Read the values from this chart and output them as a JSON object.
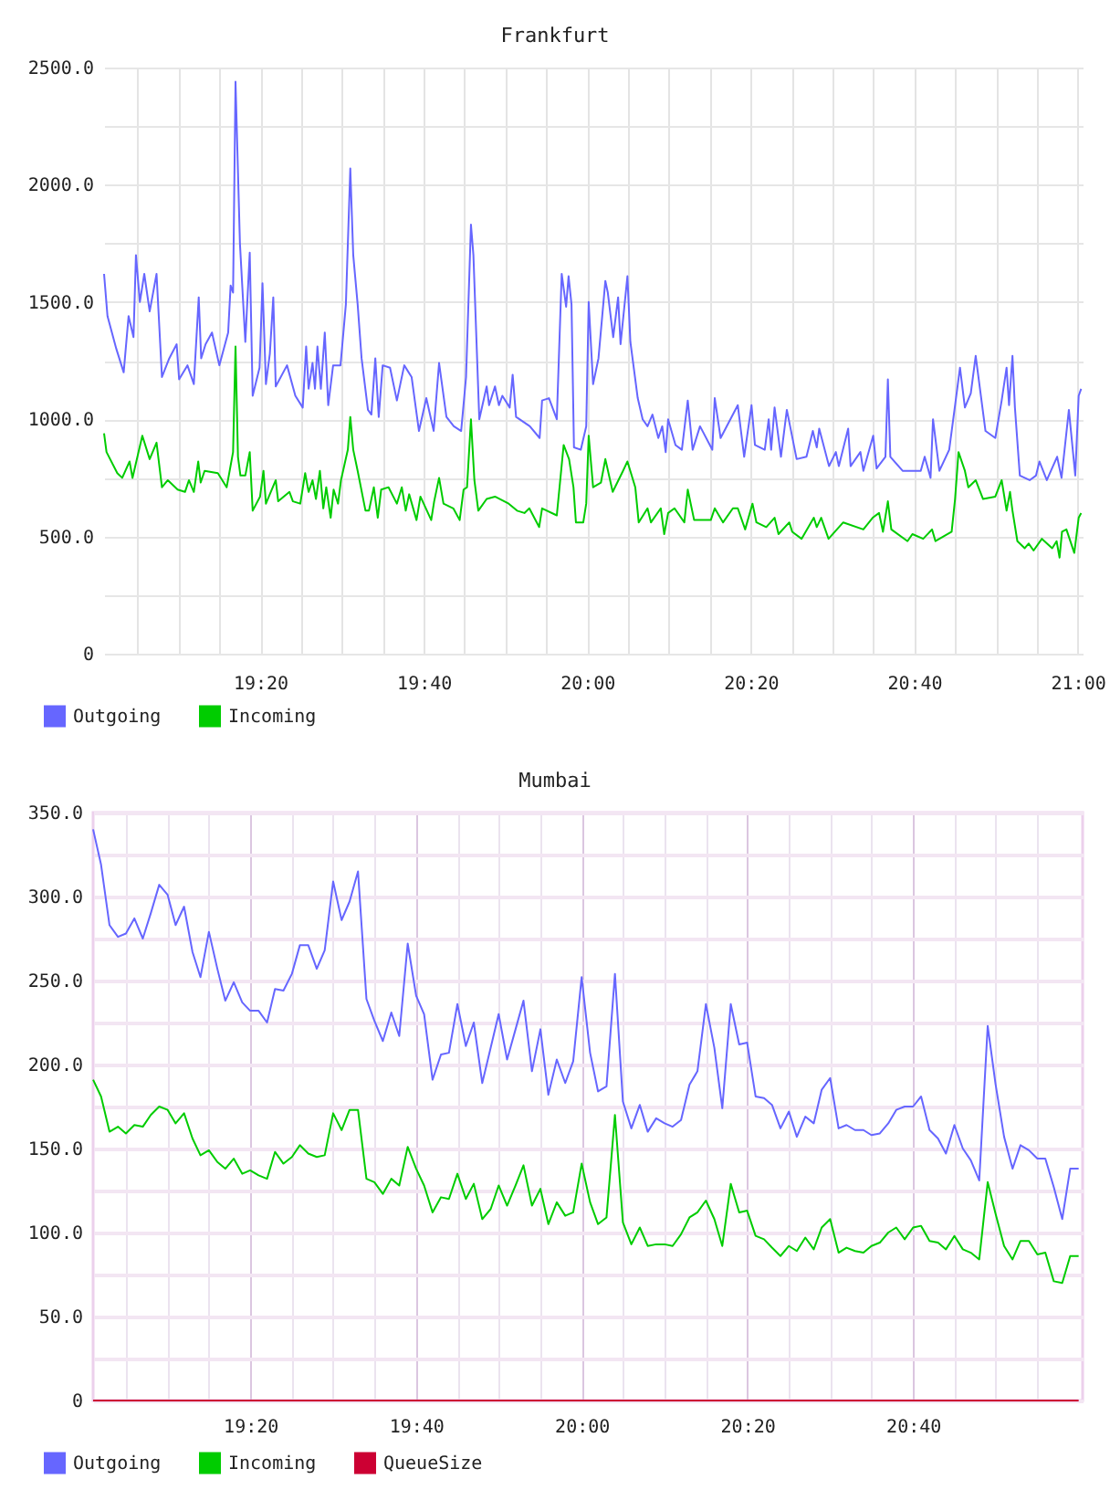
{
  "chart_data": [
    {
      "type": "line",
      "title": "Frankfurt",
      "legend": "bottom left",
      "grid": true,
      "xlim": [
        19.015,
        21.01
      ],
      "xticks": [
        {
          "value": 19.0833,
          "label": null
        },
        {
          "value": 19.1667,
          "label": null
        },
        {
          "value": 19.25,
          "label": null
        },
        {
          "value": 19.3333,
          "label": "19:20"
        },
        {
          "value": 19.4167,
          "label": null
        },
        {
          "value": 19.5,
          "label": null
        },
        {
          "value": 19.5833,
          "label": null
        },
        {
          "value": 19.6667,
          "label": "19:40"
        },
        {
          "value": 19.75,
          "label": null
        },
        {
          "value": 19.8333,
          "label": null
        },
        {
          "value": 19.9167,
          "label": null
        },
        {
          "value": 20,
          "label": "20:00"
        },
        {
          "value": 20.0833,
          "label": null
        },
        {
          "value": 20.1667,
          "label": null
        },
        {
          "value": 20.25,
          "label": null
        },
        {
          "value": 20.3333,
          "label": "20:20"
        },
        {
          "value": 20.4167,
          "label": null
        },
        {
          "value": 20.5,
          "label": null
        },
        {
          "value": 20.5833,
          "label": null
        },
        {
          "value": 20.6667,
          "label": "20:40"
        },
        {
          "value": 20.75,
          "label": null
        },
        {
          "value": 20.8333,
          "label": null
        },
        {
          "value": 20.9167,
          "label": null
        },
        {
          "value": 21,
          "label": "21:00"
        }
      ],
      "ylim": [
        0,
        2500
      ],
      "yticks": [
        0,
        {
          "value": 250,
          "label": null
        },
        {
          "value": 500,
          "label": "500.0"
        },
        {
          "value": 750,
          "label": null
        },
        {
          "value": 1000,
          "label": "1000.0"
        },
        {
          "value": 1250,
          "label": null
        },
        {
          "value": 1500,
          "label": "1500.0"
        },
        {
          "value": 1750,
          "label": null
        },
        {
          "value": 2000,
          "label": "2000.0"
        },
        {
          "value": 2250,
          "label": null
        },
        {
          "value": 2500,
          "label": "2500.0"
        }
      ],
      "series": [
        {
          "name": "Outgoing",
          "color": "#6666ff",
          "x": [
            19.015,
            19.022,
            19.04,
            19.055,
            19.065,
            19.075,
            19.08,
            19.088,
            19.097,
            19.108,
            19.122,
            19.133,
            19.148,
            19.163,
            19.168,
            19.185,
            19.198,
            19.208,
            19.213,
            19.222,
            19.235,
            19.25,
            19.268,
            19.273,
            19.278,
            19.283,
            19.292,
            19.303,
            19.312,
            19.318,
            19.332,
            19.338,
            19.345,
            19.353,
            19.36,
            19.365,
            19.388,
            19.405,
            19.42,
            19.427,
            19.432,
            19.44,
            19.445,
            19.45,
            19.457,
            19.465,
            19.472,
            19.482,
            19.497,
            19.508,
            19.517,
            19.523,
            19.532,
            19.54,
            19.553,
            19.56,
            19.568,
            19.575,
            19.583,
            19.598,
            19.612,
            19.627,
            19.642,
            19.657,
            19.672,
            19.687,
            19.698,
            19.713,
            19.728,
            19.743,
            19.753,
            19.763,
            19.768,
            19.78,
            19.795,
            19.8,
            19.812,
            19.82,
            19.827,
            19.842,
            19.848,
            19.855,
            19.883,
            19.903,
            19.908,
            19.922,
            19.938,
            19.948,
            19.957,
            19.962,
            19.968,
            19.973,
            19.987,
            19.998,
            20.003,
            20.012,
            20.023,
            20.037,
            20.042,
            20.053,
            20.063,
            20.068,
            20.082,
            20.088,
            20.103,
            20.113,
            20.123,
            20.133,
            20.145,
            20.153,
            20.16,
            20.165,
            20.18,
            20.193,
            20.205,
            20.215,
            20.23,
            20.255,
            20.26,
            20.272,
            20.307,
            20.32,
            20.335,
            20.342,
            20.362,
            20.37,
            20.375,
            20.382,
            20.395,
            20.407,
            20.427,
            20.447,
            20.46,
            20.468,
            20.473,
            20.493,
            20.507,
            20.513,
            20.532,
            20.537,
            20.557,
            20.563,
            20.583,
            20.59,
            20.608,
            20.613,
            20.618,
            20.643,
            20.68,
            20.688,
            20.7,
            20.705,
            20.718,
            20.738,
            20.75,
            20.76,
            20.77,
            20.782,
            20.792,
            20.812,
            20.832,
            20.845,
            20.855,
            20.86,
            20.867,
            20.872,
            20.882,
            20.902,
            20.915,
            20.922,
            20.937,
            20.958,
            20.967,
            20.982,
            20.995,
            21.002,
            21.007
          ],
          "values": [
            1620,
            1440,
            1300,
            1200,
            1440,
            1350,
            1700,
            1500,
            1620,
            1460,
            1620,
            1180,
            1260,
            1320,
            1170,
            1230,
            1150,
            1520,
            1260,
            1320,
            1370,
            1230,
            1370,
            1570,
            1540,
            2440,
            1750,
            1330,
            1710,
            1100,
            1220,
            1580,
            1150,
            1280,
            1520,
            1140,
            1230,
            1100,
            1050,
            1310,
            1130,
            1240,
            1130,
            1310,
            1130,
            1370,
            1060,
            1230,
            1230,
            1490,
            2070,
            1700,
            1490,
            1260,
            1040,
            1020,
            1260,
            1010,
            1230,
            1220,
            1080,
            1230,
            1180,
            950,
            1090,
            950,
            1240,
            1010,
            970,
            950,
            1180,
            1830,
            1700,
            1000,
            1140,
            1060,
            1140,
            1060,
            1100,
            1050,
            1190,
            1010,
            970,
            920,
            1080,
            1090,
            1000,
            1620,
            1480,
            1610,
            1490,
            880,
            870,
            970,
            1500,
            1150,
            1260,
            1590,
            1540,
            1350,
            1520,
            1320,
            1610,
            1330,
            1090,
            1000,
            970,
            1020,
            920,
            970,
            860,
            1000,
            890,
            870,
            1080,
            870,
            970,
            870,
            1090,
            920,
            1060,
            840,
            1060,
            890,
            870,
            1000,
            870,
            1050,
            840,
            1040,
            830,
            840,
            950,
            880,
            960,
            800,
            860,
            800,
            960,
            800,
            860,
            780,
            930,
            790,
            840,
            1170,
            840,
            780,
            780,
            840,
            750,
            1000,
            780,
            870,
            1060,
            1220,
            1050,
            1110,
            1270,
            950,
            920,
            1080,
            1220,
            1060,
            1270,
            1050,
            760,
            740,
            760,
            820,
            740,
            840,
            750,
            1040,
            760,
            1100,
            1130
          ]
        },
        {
          "name": "Incoming",
          "color": "#00cc00",
          "x": [
            19.015,
            19.02,
            19.042,
            19.052,
            19.067,
            19.073,
            19.093,
            19.108,
            19.122,
            19.133,
            19.145,
            19.165,
            19.18,
            19.188,
            19.198,
            19.207,
            19.212,
            19.22,
            19.247,
            19.265,
            19.278,
            19.283,
            19.288,
            19.293,
            19.303,
            19.312,
            19.318,
            19.333,
            19.34,
            19.345,
            19.365,
            19.37,
            19.393,
            19.4,
            19.415,
            19.425,
            19.432,
            19.44,
            19.447,
            19.455,
            19.462,
            19.468,
            19.477,
            19.483,
            19.492,
            19.498,
            19.512,
            19.517,
            19.523,
            19.532,
            19.548,
            19.555,
            19.565,
            19.573,
            19.58,
            19.595,
            19.612,
            19.622,
            19.63,
            19.637,
            19.652,
            19.66,
            19.682,
            19.688,
            19.698,
            19.707,
            19.727,
            19.74,
            19.748,
            19.755,
            19.763,
            19.77,
            19.778,
            19.795,
            19.812,
            19.84,
            19.857,
            19.872,
            19.882,
            19.902,
            19.908,
            19.938,
            19.952,
            19.963,
            19.972,
            19.977,
            19.992,
            19.998,
            20.003,
            20.012,
            20.028,
            20.037,
            20.052,
            20.073,
            20.082,
            20.098,
            20.105,
            20.123,
            20.13,
            20.15,
            20.157,
            20.165,
            20.178,
            20.198,
            20.205,
            20.218,
            20.252,
            20.26,
            20.277,
            20.297,
            20.307,
            20.322,
            20.337,
            20.345,
            20.365,
            20.382,
            20.39,
            20.412,
            20.418,
            20.437,
            20.462,
            20.468,
            20.477,
            20.492,
            20.522,
            20.563,
            20.582,
            20.595,
            20.603,
            20.613,
            20.62,
            20.653,
            20.663,
            20.685,
            20.703,
            20.71,
            20.743,
            20.75,
            20.757,
            20.77,
            20.777,
            20.792,
            20.807,
            20.832,
            20.845,
            20.855,
            20.862,
            20.867,
            20.877,
            20.892,
            20.9,
            20.91,
            20.927,
            20.948,
            20.957,
            20.963,
            20.968,
            20.977,
            20.993,
            21.002,
            21.007
          ],
          "values": [
            940,
            860,
            770,
            750,
            820,
            750,
            930,
            830,
            900,
            710,
            740,
            700,
            690,
            740,
            690,
            820,
            730,
            780,
            770,
            710,
            860,
            1310,
            840,
            760,
            760,
            860,
            610,
            670,
            780,
            640,
            740,
            650,
            690,
            650,
            640,
            770,
            690,
            740,
            660,
            780,
            620,
            710,
            580,
            700,
            640,
            740,
            870,
            1010,
            870,
            780,
            610,
            610,
            710,
            580,
            700,
            710,
            640,
            710,
            610,
            680,
            570,
            670,
            570,
            650,
            750,
            640,
            620,
            570,
            700,
            710,
            1000,
            740,
            610,
            660,
            670,
            640,
            610,
            600,
            620,
            540,
            620,
            590,
            890,
            830,
            710,
            560,
            560,
            640,
            930,
            710,
            730,
            830,
            690,
            780,
            820,
            710,
            560,
            620,
            560,
            620,
            510,
            600,
            620,
            560,
            700,
            570,
            570,
            620,
            560,
            620,
            620,
            530,
            640,
            560,
            540,
            580,
            510,
            560,
            520,
            490,
            580,
            540,
            580,
            490,
            560,
            530,
            580,
            600,
            520,
            650,
            530,
            480,
            510,
            490,
            530,
            480,
            520,
            660,
            860,
            780,
            710,
            740,
            660,
            670,
            740,
            610,
            690,
            610,
            480,
            450,
            470,
            440,
            490,
            450,
            480,
            410,
            520,
            530,
            430,
            580,
            600
          ]
        }
      ]
    },
    {
      "type": "line",
      "title": "Mumbai",
      "legend": "bottom left",
      "grid": true,
      "xlim": [
        19.017,
        21.008
      ],
      "xticks": [
        {
          "value": 19.0833,
          "label": null
        },
        {
          "value": 19.1667,
          "label": null
        },
        {
          "value": 19.25,
          "label": null
        },
        {
          "value": 19.3333,
          "label": "19:20"
        },
        {
          "value": 19.4167,
          "label": null
        },
        {
          "value": 19.5,
          "label": null
        },
        {
          "value": 19.5833,
          "label": null
        },
        {
          "value": 19.6667,
          "label": "19:40"
        },
        {
          "value": 19.75,
          "label": null
        },
        {
          "value": 19.8333,
          "label": null
        },
        {
          "value": 19.9167,
          "label": null
        },
        {
          "value": 20,
          "label": "20:00"
        },
        {
          "value": 20.0833,
          "label": null
        },
        {
          "value": 20.1667,
          "label": null
        },
        {
          "value": 20.25,
          "label": null
        },
        {
          "value": 20.3333,
          "label": "20:20"
        },
        {
          "value": 20.4167,
          "label": null
        },
        {
          "value": 20.5,
          "label": null
        },
        {
          "value": 20.5833,
          "label": null
        },
        {
          "value": 20.6667,
          "label": "20:40"
        },
        {
          "value": 20.75,
          "label": null
        },
        {
          "value": 20.8333,
          "label": null
        },
        {
          "value": 20.9167,
          "label": null
        }
      ],
      "ylim": [
        0,
        350
      ],
      "yticks": [
        0,
        {
          "value": 25,
          "label": null
        },
        {
          "value": 50,
          "label": "50.0"
        },
        {
          "value": 75,
          "label": null
        },
        {
          "value": 100,
          "label": "100.0"
        },
        {
          "value": 125,
          "label": null
        },
        {
          "value": 150,
          "label": "150.0"
        },
        {
          "value": 175,
          "label": null
        },
        {
          "value": 200,
          "label": "200.0"
        },
        {
          "value": 225,
          "label": null
        },
        {
          "value": 250,
          "label": "250.0"
        },
        {
          "value": 275,
          "label": null
        },
        {
          "value": 300,
          "label": "300.0"
        },
        {
          "value": 325,
          "label": null
        },
        {
          "value": 350,
          "label": "350.0"
        }
      ],
      "x": [
        19.017,
        19.033,
        19.05,
        19.067,
        19.083,
        19.1,
        19.117,
        19.133,
        19.15,
        19.167,
        19.183,
        19.2,
        19.217,
        19.233,
        19.25,
        19.267,
        19.283,
        19.3,
        19.317,
        19.333,
        19.35,
        19.367,
        19.383,
        19.4,
        19.417,
        19.433,
        19.45,
        19.467,
        19.483,
        19.5,
        19.517,
        19.533,
        19.55,
        19.567,
        19.583,
        19.6,
        19.617,
        19.633,
        19.65,
        19.667,
        19.683,
        19.7,
        19.717,
        19.733,
        19.75,
        19.767,
        19.783,
        19.8,
        19.817,
        19.833,
        19.85,
        19.867,
        19.883,
        19.9,
        19.917,
        19.933,
        19.95,
        19.967,
        19.983,
        20,
        20.017,
        20.033,
        20.05,
        20.067,
        20.083,
        20.1,
        20.117,
        20.133,
        20.15,
        20.167,
        20.183,
        20.2,
        20.217,
        20.233,
        20.25,
        20.267,
        20.283,
        20.3,
        20.317,
        20.333,
        20.35,
        20.367,
        20.383,
        20.4,
        20.417,
        20.433,
        20.45,
        20.467,
        20.483,
        20.5,
        20.517,
        20.533,
        20.55,
        20.567,
        20.583,
        20.6,
        20.617,
        20.633,
        20.65,
        20.667,
        20.683,
        20.7,
        20.717,
        20.733,
        20.75,
        20.767,
        20.783,
        20.8,
        20.817,
        20.833,
        20.85,
        20.867,
        20.883,
        20.9,
        20.917,
        20.933,
        20.95,
        20.967,
        20.983,
        21
      ],
      "series": [
        {
          "name": "Outgoing",
          "color": "#6666ff",
          "values": [
            340,
            319,
            283,
            276,
            278,
            287,
            275,
            290,
            307,
            301,
            283,
            294,
            267,
            252,
            279,
            257,
            238,
            249,
            237,
            232,
            232,
            225,
            245,
            244,
            254,
            271,
            271,
            257,
            268,
            309,
            286,
            297,
            315,
            239,
            226,
            214,
            231,
            217,
            272,
            241,
            230,
            191,
            206,
            207,
            236,
            211,
            225,
            189,
            210,
            230,
            203,
            221,
            238,
            196,
            221,
            182,
            203,
            189,
            202,
            252,
            207,
            184,
            187,
            254,
            178,
            162,
            176,
            160,
            168,
            165,
            163,
            167,
            188,
            196,
            236,
            210,
            174,
            236,
            212,
            213,
            181,
            180,
            176,
            162,
            172,
            157,
            169,
            165,
            185,
            192,
            162,
            164,
            161,
            161,
            158,
            159,
            165,
            173,
            175,
            175,
            181,
            161,
            156,
            147,
            164,
            150,
            143,
            131,
            223,
            188,
            157,
            138,
            152,
            149,
            144,
            144,
            127,
            108,
            138,
            138
          ]
        },
        {
          "name": "Incoming",
          "color": "#00cc00",
          "values": [
            191,
            181,
            160,
            163,
            159,
            164,
            163,
            170,
            175,
            173,
            165,
            171,
            156,
            146,
            149,
            142,
            138,
            144,
            135,
            137,
            134,
            132,
            148,
            141,
            145,
            152,
            147,
            145,
            146,
            171,
            161,
            173,
            173,
            132,
            130,
            123,
            132,
            128,
            151,
            138,
            128,
            112,
            121,
            120,
            135,
            120,
            129,
            108,
            114,
            128,
            116,
            128,
            140,
            116,
            126,
            105,
            118,
            110,
            112,
            141,
            118,
            105,
            109,
            170,
            106,
            93,
            103,
            92,
            93,
            93,
            92,
            99,
            109,
            112,
            119,
            108,
            92,
            129,
            112,
            113,
            98,
            96,
            91,
            86,
            92,
            89,
            97,
            90,
            103,
            108,
            88,
            91,
            89,
            88,
            92,
            94,
            100,
            103,
            96,
            103,
            104,
            95,
            94,
            90,
            98,
            90,
            88,
            84,
            130,
            111,
            92,
            84,
            95,
            95,
            87,
            88,
            71,
            70,
            86,
            86
          ]
        },
        {
          "name": "QueueSize",
          "color": "#cc0033",
          "values": [
            0,
            0,
            0,
            0,
            0,
            0,
            0,
            0,
            0,
            0,
            0,
            0,
            0,
            0,
            0,
            0,
            0,
            0,
            0,
            0,
            0,
            0,
            0,
            0,
            0,
            0,
            0,
            0,
            0,
            0,
            0,
            0,
            0,
            0,
            0,
            0,
            0,
            0,
            0,
            0,
            0,
            0,
            0,
            0,
            0,
            0,
            0,
            0,
            0,
            0,
            0,
            0,
            0,
            0,
            0,
            0,
            0,
            0,
            0,
            0,
            0,
            0,
            0,
            0,
            0,
            0,
            0,
            0,
            0,
            0,
            0,
            0,
            0,
            0,
            0,
            0,
            0,
            0,
            0,
            0,
            0,
            0,
            0,
            0,
            0,
            0,
            0,
            0,
            0,
            0,
            0,
            0,
            0,
            0,
            0,
            0,
            0,
            0,
            0,
            0,
            0,
            0,
            0,
            0,
            0,
            0,
            0,
            0,
            0,
            0,
            0,
            0,
            0,
            0,
            0,
            0,
            0,
            0,
            0,
            0
          ]
        }
      ]
    }
  ]
}
